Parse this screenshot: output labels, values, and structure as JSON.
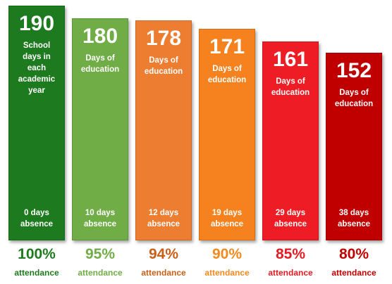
{
  "chart_data": {
    "type": "bar",
    "title": "",
    "xlabel": "",
    "ylabel": "",
    "ylim": [
      0,
      190
    ],
    "grid": false,
    "legend": "none",
    "bars": [
      {
        "value": 190,
        "value_label": "190",
        "description": "School\ndays in\neach\nacademic\nyear",
        "absence": "0 days\nabsence",
        "attendance_pct": "100%",
        "attendance_label": "attendance",
        "color": "#1e7a1e",
        "pct_color": "#1e7a1e"
      },
      {
        "value": 180,
        "value_label": "180",
        "description": "Days of\neducation",
        "absence": "10 days\nabsence",
        "attendance_pct": "95%",
        "attendance_label": "attendance",
        "color": "#70ad47",
        "pct_color": "#70ad47"
      },
      {
        "value": 178,
        "value_label": "178",
        "description": "Days of\neducation",
        "absence": "12 days\nabsence",
        "attendance_pct": "94%",
        "attendance_label": "attendance",
        "color": "#ed7d31",
        "pct_color": "#c9601a"
      },
      {
        "value": 171,
        "value_label": "171",
        "description": "Days of\neducation",
        "absence": "19 days\nabsence",
        "attendance_pct": "90%",
        "attendance_label": "attendance",
        "color": "#f5821f",
        "pct_color": "#f28a1d"
      },
      {
        "value": 161,
        "value_label": "161",
        "description": "Days of\neducation",
        "absence": "29 days\nabsence",
        "attendance_pct": "85%",
        "attendance_label": "attendance",
        "color": "#ee1c24",
        "pct_color": "#e31b23"
      },
      {
        "value": 152,
        "value_label": "152",
        "description": "Days of\neducation",
        "absence": "38 days\nabsence",
        "attendance_pct": "80%",
        "attendance_label": "attendance",
        "color": "#c00000",
        "pct_color": "#c00000"
      }
    ]
  }
}
